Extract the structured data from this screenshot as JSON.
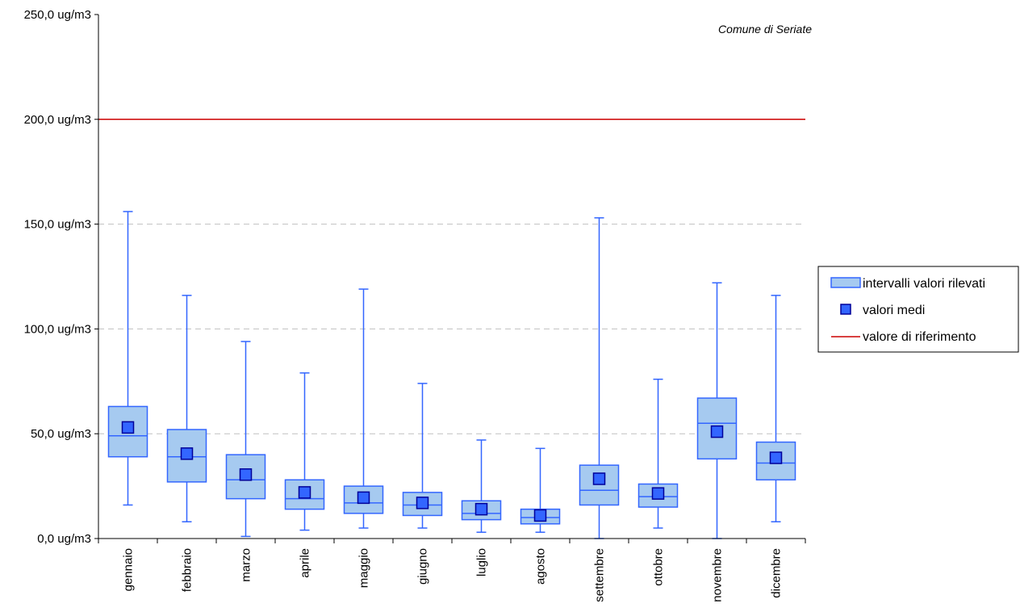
{
  "chart_data": {
    "type": "box",
    "title": "",
    "annotation": "Comune di Seriate",
    "xlabel": "",
    "ylabel": "",
    "ylim": [
      0,
      250
    ],
    "y_ticks": [
      {
        "value": 0,
        "label": "0,0 ug/m3"
      },
      {
        "value": 50,
        "label": "50,0 ug/m3"
      },
      {
        "value": 100,
        "label": "100,0 ug/m3"
      },
      {
        "value": 150,
        "label": "150,0 ug/m3"
      },
      {
        "value": 200,
        "label": "200,0 ug/m3"
      },
      {
        "value": 250,
        "label": "250,0 ug/m3"
      }
    ],
    "gridlines_dashed": [
      50,
      100,
      150
    ],
    "categories": [
      "gennaio",
      "febbraio",
      "marzo",
      "aprile",
      "maggio",
      "giugno",
      "luglio",
      "agosto",
      "settembre",
      "ottobre",
      "novembre",
      "dicembre"
    ],
    "boxes": [
      {
        "min": 16,
        "q1": 39,
        "median": 49,
        "q3": 63,
        "max": 156,
        "mean": 53
      },
      {
        "min": 8,
        "q1": 27,
        "median": 39,
        "q3": 52,
        "max": 116,
        "mean": 40.5
      },
      {
        "min": 1,
        "q1": 19,
        "median": 28,
        "q3": 40,
        "max": 94,
        "mean": 30.5
      },
      {
        "min": 4,
        "q1": 14,
        "median": 19,
        "q3": 28,
        "max": 79,
        "mean": 22
      },
      {
        "min": 5,
        "q1": 12,
        "median": 17,
        "q3": 25,
        "max": 119,
        "mean": 19.5
      },
      {
        "min": 5,
        "q1": 11,
        "median": 16,
        "q3": 22,
        "max": 74,
        "mean": 17
      },
      {
        "min": 3,
        "q1": 9,
        "median": 12,
        "q3": 18,
        "max": 47,
        "mean": 14
      },
      {
        "min": 3,
        "q1": 7,
        "median": 10,
        "q3": 14,
        "max": 43,
        "mean": 11
      },
      {
        "min": 0,
        "q1": 16,
        "median": 23,
        "q3": 35,
        "max": 153,
        "mean": 28.5
      },
      {
        "min": 5,
        "q1": 15,
        "median": 20,
        "q3": 26,
        "max": 76,
        "mean": 21.5
      },
      {
        "min": 0,
        "q1": 38,
        "median": 55,
        "q3": 67,
        "max": 122,
        "mean": 51
      },
      {
        "min": 8,
        "q1": 28,
        "median": 36,
        "q3": 46,
        "max": 116,
        "mean": 38.5
      }
    ],
    "reference_value": 200,
    "legend": {
      "position": "right",
      "entries": [
        {
          "label": "intervalli valori rilevati",
          "kind": "box"
        },
        {
          "label": "valori medi",
          "kind": "marker"
        },
        {
          "label": "valore di riferimento",
          "kind": "line"
        }
      ]
    },
    "colors": {
      "box_fill": "#a6caf0",
      "box_stroke": "#3366ff",
      "whisker": "#3366ff",
      "mean_marker": "#3366ff",
      "mean_marker_stroke": "#000099",
      "reference_line": "#cc0000",
      "grid": "#c0c0c0",
      "axis": "#000000"
    }
  }
}
